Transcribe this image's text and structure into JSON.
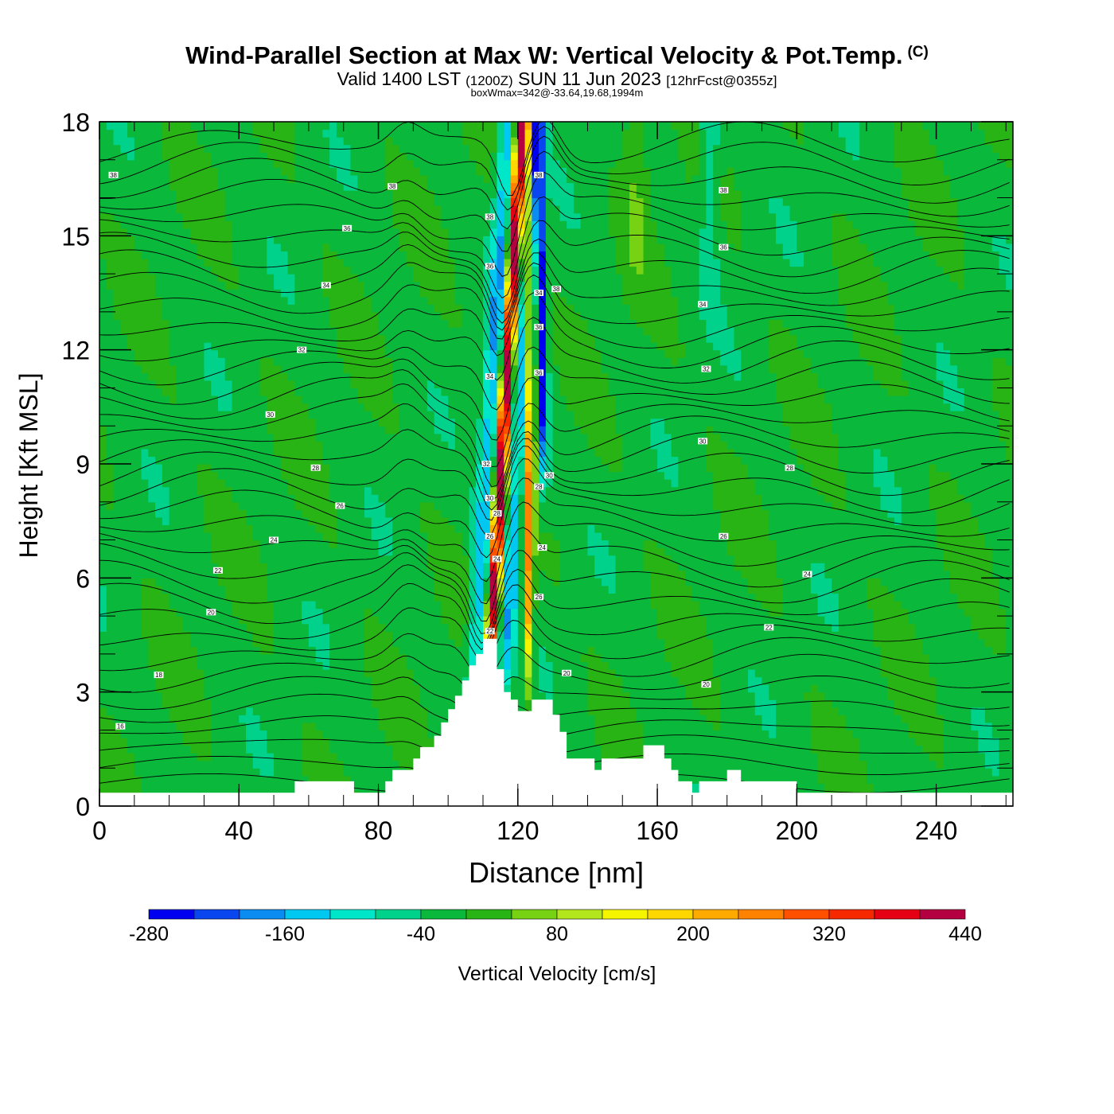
{
  "header": {
    "title_main": "Wind-Parallel Section at Max W: Vertical Velocity & Pot.Temp.",
    "title_copyright": "(C)",
    "valid_prefix": "Valid 1400 LST",
    "valid_utc": "(1200Z)",
    "valid_date": "SUN 11 Jun 2023",
    "forecast": "[12hrFcst@0355z]",
    "box_wmax": "boxWmax=342@-33.64,19.68,1994m"
  },
  "chart_data": {
    "type": "heatmap",
    "xlabel": "Distance [nm]",
    "ylabel": "Height [Kft MSL]",
    "xlim": [
      0,
      262
    ],
    "ylim": [
      0,
      18
    ],
    "x_ticks": [
      "0",
      "40",
      "80",
      "120",
      "160",
      "200",
      "240"
    ],
    "y_ticks": [
      "0",
      "3",
      "6",
      "9",
      "12",
      "15",
      "18"
    ],
    "colorbar": {
      "label": "Vertical Velocity [cm/s]",
      "min": -280,
      "step": 40,
      "tick_labels": [
        "-280",
        "-160",
        "-40",
        "80",
        "200",
        "320",
        "440"
      ],
      "colors": [
        "#0000f0",
        "#0a46f0",
        "#0a8cf0",
        "#00c8f0",
        "#00e6c8",
        "#00d28c",
        "#0ab93c",
        "#28b414",
        "#78d214",
        "#b4e61e",
        "#f5f500",
        "#ffd700",
        "#ffaa00",
        "#ff8200",
        "#ff5000",
        "#f52800",
        "#e60014",
        "#b40040"
      ]
    },
    "terrain_kft": [
      [
        0,
        0.35
      ],
      [
        56,
        0.35
      ],
      [
        56,
        0.65
      ],
      [
        73,
        0.65
      ],
      [
        73,
        0.35
      ],
      [
        82,
        0.35
      ],
      [
        82,
        0.65
      ],
      [
        84,
        0.65
      ],
      [
        84,
        0.95
      ],
      [
        90,
        0.95
      ],
      [
        90,
        1.25
      ],
      [
        92,
        1.25
      ],
      [
        92,
        1.55
      ],
      [
        96,
        1.55
      ],
      [
        96,
        1.85
      ],
      [
        98,
        1.85
      ],
      [
        98,
        2.2
      ],
      [
        100,
        2.2
      ],
      [
        100,
        2.55
      ],
      [
        102,
        2.55
      ],
      [
        102,
        2.9
      ],
      [
        104,
        2.9
      ],
      [
        104,
        3.3
      ],
      [
        106,
        3.3
      ],
      [
        106,
        3.7
      ],
      [
        108,
        3.7
      ],
      [
        108,
        4.0
      ],
      [
        110,
        4.0
      ],
      [
        110,
        4.4
      ],
      [
        114,
        4.4
      ],
      [
        114,
        3.6
      ],
      [
        116,
        3.6
      ],
      [
        116,
        3.0
      ],
      [
        118,
        3.0
      ],
      [
        118,
        2.8
      ],
      [
        120,
        2.8
      ],
      [
        120,
        2.5
      ],
      [
        124,
        2.5
      ],
      [
        124,
        2.8
      ],
      [
        130,
        2.8
      ],
      [
        130,
        2.4
      ],
      [
        132,
        2.4
      ],
      [
        132,
        1.95
      ],
      [
        134,
        1.95
      ],
      [
        134,
        1.25
      ],
      [
        142,
        1.25
      ],
      [
        142,
        0.95
      ],
      [
        144,
        0.95
      ],
      [
        144,
        1.25
      ],
      [
        156,
        1.25
      ],
      [
        156,
        1.6
      ],
      [
        162,
        1.6
      ],
      [
        162,
        1.25
      ],
      [
        164,
        1.25
      ],
      [
        164,
        0.95
      ],
      [
        166,
        0.95
      ],
      [
        166,
        0.65
      ],
      [
        170,
        0.65
      ],
      [
        170,
        0.35
      ],
      [
        172,
        0.35
      ],
      [
        172,
        0.65
      ],
      [
        180,
        0.65
      ],
      [
        180,
        0.95
      ],
      [
        184,
        0.95
      ],
      [
        184,
        0.65
      ],
      [
        200,
        0.65
      ],
      [
        200,
        0.35
      ],
      [
        262,
        0.35
      ]
    ],
    "updraft_max_cm_s": 342,
    "theta_contour_labels": [
      {
        "text": "16",
        "x": 6,
        "y": 2.1
      },
      {
        "text": "18",
        "x": 17,
        "y": 3.45
      },
      {
        "text": "20",
        "x": 32,
        "y": 5.1
      },
      {
        "text": "22",
        "x": 34,
        "y": 6.2
      },
      {
        "text": "24",
        "x": 50,
        "y": 7.0
      },
      {
        "text": "26",
        "x": 69,
        "y": 7.9
      },
      {
        "text": "28",
        "x": 62,
        "y": 8.9
      },
      {
        "text": "30",
        "x": 49,
        "y": 10.3
      },
      {
        "text": "32",
        "x": 58,
        "y": 12.0
      },
      {
        "text": "34",
        "x": 65,
        "y": 13.7
      },
      {
        "text": "36",
        "x": 71,
        "y": 15.2
      },
      {
        "text": "38",
        "x": 84,
        "y": 16.3
      },
      {
        "text": "38",
        "x": 4,
        "y": 16.6
      },
      {
        "text": "20",
        "x": 134,
        "y": 3.5
      },
      {
        "text": "20",
        "x": 174,
        "y": 3.2
      },
      {
        "text": "22",
        "x": 192,
        "y": 4.7
      },
      {
        "text": "24",
        "x": 203,
        "y": 6.1
      },
      {
        "text": "26",
        "x": 179,
        "y": 7.1
      },
      {
        "text": "28",
        "x": 198,
        "y": 8.9
      },
      {
        "text": "30",
        "x": 173,
        "y": 9.6
      },
      {
        "text": "32",
        "x": 174,
        "y": 11.5
      },
      {
        "text": "34",
        "x": 173,
        "y": 13.2
      },
      {
        "text": "36",
        "x": 179,
        "y": 14.7
      },
      {
        "text": "38",
        "x": 179,
        "y": 16.2
      },
      {
        "text": "38",
        "x": 131,
        "y": 13.6
      },
      {
        "text": "22",
        "x": 112,
        "y": 4.6
      },
      {
        "text": "24",
        "x": 114,
        "y": 6.5
      },
      {
        "text": "26",
        "x": 112,
        "y": 7.1
      },
      {
        "text": "28",
        "x": 114,
        "y": 7.7
      },
      {
        "text": "30",
        "x": 112,
        "y": 8.1
      },
      {
        "text": "32",
        "x": 111,
        "y": 9.0
      },
      {
        "text": "34",
        "x": 112,
        "y": 11.3
      },
      {
        "text": "36",
        "x": 112,
        "y": 14.2
      },
      {
        "text": "38",
        "x": 112,
        "y": 15.5
      },
      {
        "text": "26",
        "x": 126,
        "y": 5.5
      },
      {
        "text": "24",
        "x": 127,
        "y": 6.8
      },
      {
        "text": "28",
        "x": 126,
        "y": 8.4
      },
      {
        "text": "30",
        "x": 129,
        "y": 8.7
      },
      {
        "text": "36",
        "x": 126,
        "y": 11.4
      },
      {
        "text": "36",
        "x": 126,
        "y": 12.6
      },
      {
        "text": "34",
        "x": 126,
        "y": 13.5
      },
      {
        "text": "38",
        "x": 126,
        "y": 16.6
      }
    ]
  }
}
